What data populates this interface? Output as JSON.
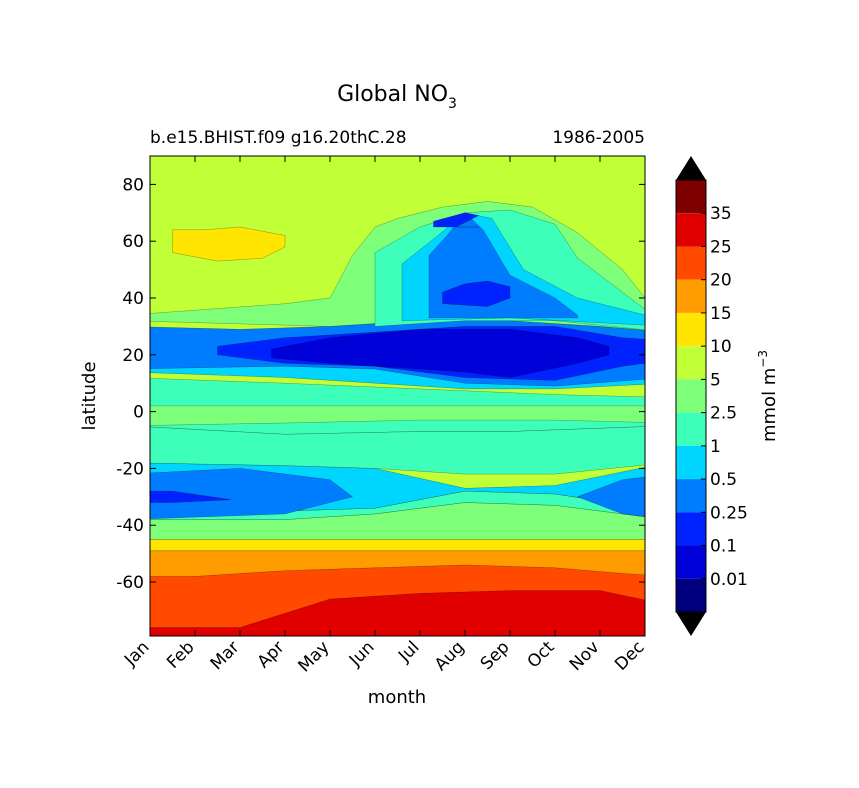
{
  "chart_data": {
    "type": "heatmap",
    "title_main": "Global NO",
    "title_sub": "3",
    "subtitle_left": "b.e15.BHIST.f09 g16.20thC.28",
    "subtitle_right": "1986-2005",
    "xlabel": "month",
    "ylabel": "latitude",
    "x_ticks": [
      "Jan",
      "Feb",
      "Mar",
      "Apr",
      "May",
      "Jun",
      "Jul",
      "Aug",
      "Sep",
      "Oct",
      "Nov",
      "Dec"
    ],
    "y_ticks": [
      80,
      60,
      40,
      20,
      0,
      -20,
      -40,
      -60
    ],
    "ylim": [
      -79,
      90
    ],
    "colorbar": {
      "label": "mmol m",
      "label_sup": "−3",
      "levels": [
        0.01,
        0.1,
        0.25,
        0.5,
        1,
        2.5,
        5,
        10,
        15,
        20,
        25,
        35
      ],
      "level_labels": [
        "0.01",
        "0.1",
        "0.25",
        "0.5",
        "1",
        "2.5",
        "5",
        "10",
        "15",
        "20",
        "25",
        "35"
      ],
      "colors": [
        "#00007f",
        "#0000d9",
        "#0022ff",
        "#007dff",
        "#00d5ff",
        "#3dffba",
        "#7dff7a",
        "#c1ff36",
        "#ffe500",
        "#ff9c00",
        "#ff4a00",
        "#e00000",
        "#7f0000"
      ],
      "over_color": "#000000",
      "under_color": "#000000"
    },
    "bands_by_latitude": [
      {
        "lat": [
          76,
          90
        ],
        "level": "5-10"
      },
      {
        "lat": [
          55,
          65
        ],
        "level": "10-15",
        "months": "Jan-Mar"
      },
      {
        "lat": [
          20,
          30
        ],
        "level": "0.1-0.25",
        "months": "Mar-Oct"
      },
      {
        "lat": [
          -20,
          10
        ],
        "level": "1-2.5"
      },
      {
        "lat": [
          -45,
          -20
        ],
        "level": "0.5-1"
      },
      {
        "lat": [
          -60,
          -50
        ],
        "level": "15-20"
      },
      {
        "lat": [
          -79,
          -60
        ],
        "level": "20-25"
      }
    ]
  }
}
